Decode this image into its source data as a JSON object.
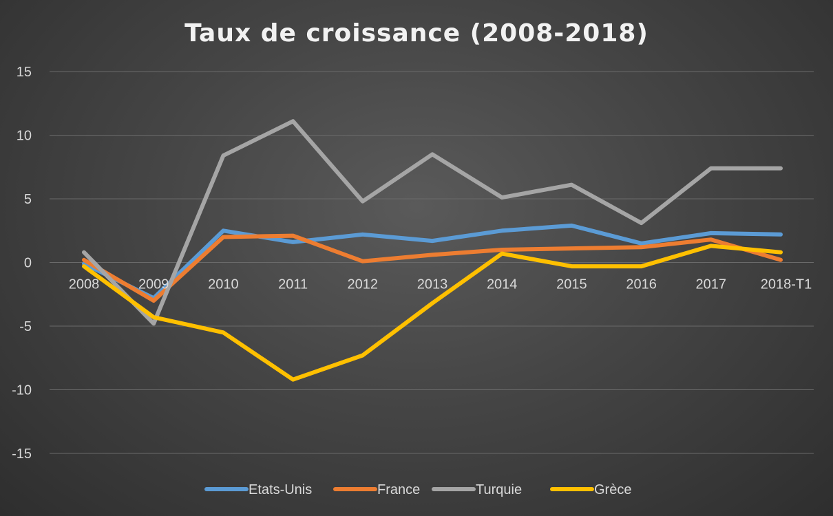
{
  "chart_data": {
    "type": "line",
    "title": "Taux de croissance  (2008-2018)",
    "xlabel": "",
    "ylabel": "",
    "categories": [
      "2008",
      "2009",
      "2010",
      "2011",
      "2012",
      "2013",
      "2014",
      "2015",
      "2016",
      "2017",
      "2018-T1"
    ],
    "yticks": [
      "15",
      "10",
      "5",
      "0",
      "-5",
      "-10",
      "-15"
    ],
    "ytick_values": [
      15,
      10,
      5,
      0,
      -5,
      -10,
      -15
    ],
    "ylim": [
      -15,
      15
    ],
    "grid": true,
    "legend_position": "bottom",
    "series": [
      {
        "name": "Etats-Unis",
        "color": "#5b9bd5",
        "values": [
          -0.1,
          -2.8,
          2.5,
          1.6,
          2.2,
          1.7,
          2.5,
          2.9,
          1.5,
          2.3,
          2.2
        ]
      },
      {
        "name": "France",
        "color": "#ed7d31",
        "values": [
          0.2,
          -3.0,
          2.0,
          2.1,
          0.1,
          0.6,
          1.0,
          1.1,
          1.2,
          1.8,
          0.2
        ]
      },
      {
        "name": "Turquie",
        "color": "#a5a5a5",
        "values": [
          0.8,
          -4.8,
          8.4,
          11.1,
          4.8,
          8.5,
          5.1,
          6.1,
          3.1,
          7.4,
          7.4
        ]
      },
      {
        "name": "Grèce",
        "color": "#ffc000",
        "values": [
          -0.3,
          -4.3,
          -5.5,
          -9.2,
          -7.3,
          -3.2,
          0.7,
          -0.3,
          -0.3,
          1.3,
          0.8
        ]
      }
    ]
  }
}
